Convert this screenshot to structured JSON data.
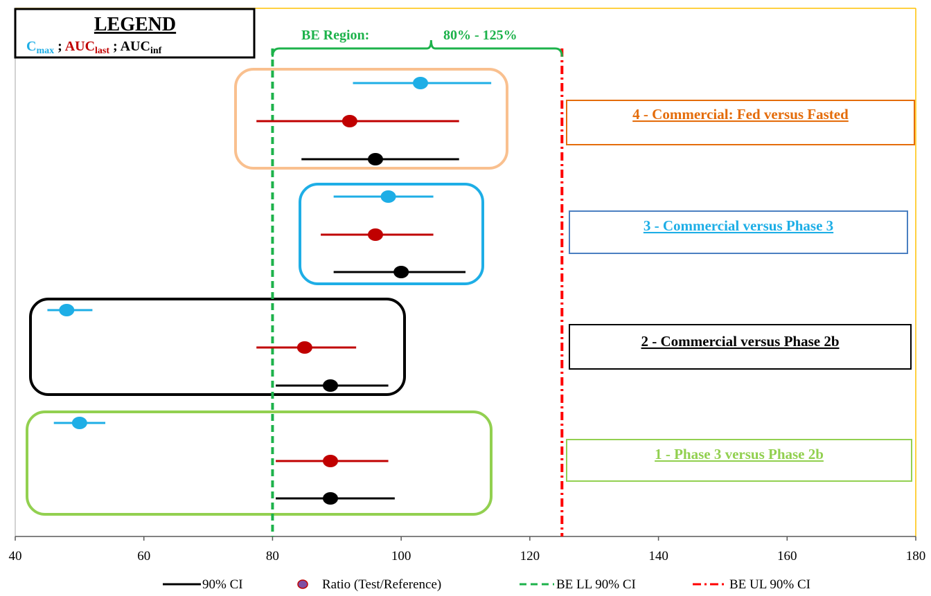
{
  "chart_data": {
    "type": "scatter",
    "subtype": "forest-plot",
    "xlim": [
      40,
      180
    ],
    "x_ticks": [
      40,
      60,
      80,
      100,
      120,
      140,
      160,
      180
    ],
    "grid": false,
    "colors": {
      "cmax": "#1eaee6",
      "auc_last": "#c00000",
      "auc_inf": "#000000",
      "be_ll": "#1db24b",
      "be_ul": "#ff0000",
      "be_region": "#1db24b",
      "plot_frame": "#ffc000"
    },
    "legend_box": {
      "title": "LEGEND",
      "items": [
        {
          "base": "C",
          "sub": "max",
          "color": "#1eaee6"
        },
        {
          "base": "AUC",
          "sub": "last",
          "color": "#c00000"
        },
        {
          "base": "AUC",
          "sub": "inf",
          "color": "#000000"
        }
      ],
      "separator": ";"
    },
    "be_region": {
      "label": "BE Region:",
      "range_text": "80% - 125%",
      "lower": 80,
      "upper": 125
    },
    "comparisons": [
      {
        "id": 4,
        "label": "4 - Commercial: Fed versus Fasted",
        "box_color": "#f9c08f",
        "label_color": "#e46c0a",
        "label_border": "#e46c0a",
        "cmax": {
          "ratio": 103,
          "lower": 92.5,
          "upper": 114
        },
        "auc_last": {
          "ratio": 92,
          "lower": 77.5,
          "upper": 109
        },
        "auc_inf": {
          "ratio": 96,
          "lower": 84.5,
          "upper": 109
        }
      },
      {
        "id": 3,
        "label": "3 - Commercial versus Phase 3",
        "box_color": "#1eaee6",
        "label_color": "#1eaee6",
        "label_border": "#4a7fc1",
        "cmax": {
          "ratio": 98,
          "lower": 89.5,
          "upper": 105
        },
        "auc_last": {
          "ratio": 96,
          "lower": 87.5,
          "upper": 105
        },
        "auc_inf": {
          "ratio": 100,
          "lower": 89.5,
          "upper": 110
        }
      },
      {
        "id": 2,
        "label": "2 - Commercial versus Phase 2b",
        "box_color": "#000000",
        "label_color": "#000000",
        "label_border": "#000000",
        "cmax": {
          "ratio": 48,
          "lower": 45,
          "upper": 52
        },
        "auc_last": {
          "ratio": 85,
          "lower": 77.5,
          "upper": 93
        },
        "auc_inf": {
          "ratio": 89,
          "lower": 80.5,
          "upper": 98
        }
      },
      {
        "id": 1,
        "label": "1 - Phase 3 versus Phase 2b",
        "box_color": "#92d050",
        "label_color": "#92d050",
        "label_border": "#92d050",
        "cmax": {
          "ratio": 50,
          "lower": 46,
          "upper": 54
        },
        "auc_last": {
          "ratio": 89,
          "lower": 80.5,
          "upper": 98
        },
        "auc_inf": {
          "ratio": 89,
          "lower": 80.5,
          "upper": 99
        }
      }
    ],
    "bottom_legend": [
      {
        "label": "90% CI"
      },
      {
        "label": "Ratio (Test/Reference)"
      },
      {
        "label": "BE LL 90% CI"
      },
      {
        "label": "BE UL 90% CI"
      }
    ]
  }
}
